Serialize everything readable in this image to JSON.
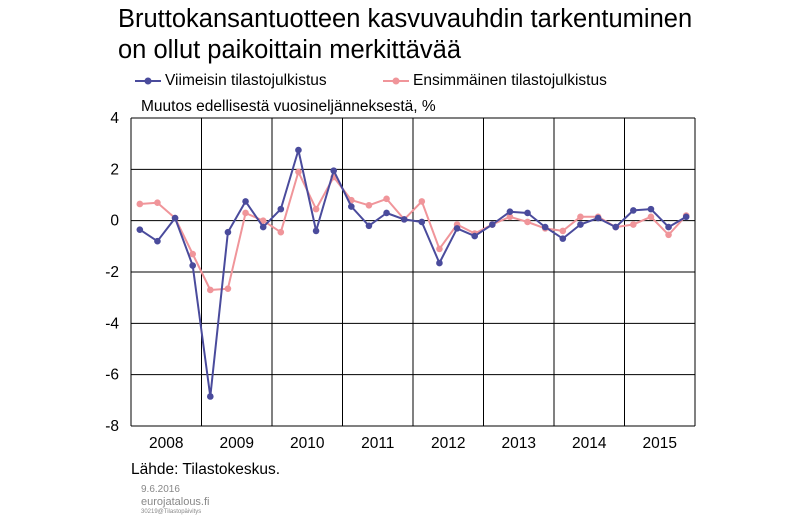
{
  "title_line1": "Bruttokansantuotteen kasvuvauhdin tarkentuminen",
  "title_line2": "on ollut paikoittain merkittävää",
  "source": "Lähde: Tilastokeskus.",
  "footer": {
    "date": "9.6.2016",
    "site": "eurojatalous.fi",
    "code": "30219@Tilastopäivitys"
  },
  "colors": {
    "latest": "#4a4b9c",
    "first": "#f0959a"
  },
  "chart_data": {
    "type": "line",
    "ylabel": "Muutos edellisestä vuosineljänneksestä, %",
    "ylim": [
      -8,
      4
    ],
    "yticks": [
      -8,
      -6,
      -4,
      -2,
      0,
      2,
      4
    ],
    "year_labels": [
      "2008",
      "2009",
      "2010",
      "2011",
      "2012",
      "2013",
      "2014",
      "2015"
    ],
    "x": [
      "2008Q1",
      "2008Q2",
      "2008Q3",
      "2008Q4",
      "2009Q1",
      "2009Q2",
      "2009Q3",
      "2009Q4",
      "2010Q1",
      "2010Q2",
      "2010Q3",
      "2010Q4",
      "2011Q1",
      "2011Q2",
      "2011Q3",
      "2011Q4",
      "2012Q1",
      "2012Q2",
      "2012Q3",
      "2012Q4",
      "2013Q1",
      "2013Q2",
      "2013Q3",
      "2013Q4",
      "2014Q1",
      "2014Q2",
      "2014Q3",
      "2014Q4",
      "2015Q1",
      "2015Q2",
      "2015Q3",
      "2015Q4"
    ],
    "grid": true,
    "legend_position": "top",
    "series": [
      {
        "name": "Viimeisin tilastojulkistus",
        "values": [
          -0.35,
          -0.8,
          0.1,
          -1.75,
          -6.85,
          -0.45,
          0.75,
          -0.25,
          0.45,
          2.75,
          -0.4,
          1.95,
          0.55,
          -0.2,
          0.3,
          0.05,
          -0.05,
          -1.65,
          -0.3,
          -0.6,
          -0.15,
          0.35,
          0.3,
          -0.25,
          -0.7,
          -0.15,
          0.1,
          -0.25,
          0.4,
          0.45,
          -0.25,
          0.15
        ]
      },
      {
        "name": "Ensimmäinen tilastojulkistus",
        "values": [
          0.65,
          0.7,
          0.1,
          -1.3,
          -2.7,
          -2.65,
          0.3,
          0.0,
          -0.45,
          1.9,
          0.45,
          1.7,
          0.8,
          0.6,
          0.85,
          0.05,
          0.75,
          -1.1,
          -0.15,
          -0.5,
          -0.15,
          0.15,
          -0.05,
          -0.3,
          -0.4,
          0.15,
          0.15,
          -0.25,
          -0.15,
          0.15,
          -0.55,
          0.2
        ]
      }
    ]
  }
}
